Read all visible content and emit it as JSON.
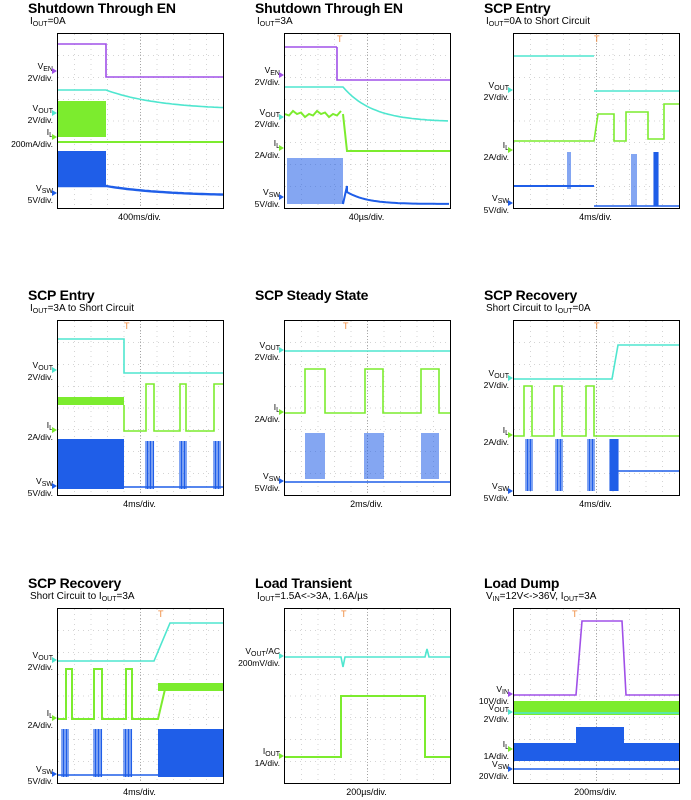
{
  "colors": {
    "vin_en": "#a050e8",
    "vout": "#4fe6cf",
    "il": "#7cec2e",
    "vsw": "#1f5ee8",
    "grid": "#a9a9a9",
    "trigger": "#f08a3c"
  },
  "chart_data": [
    {
      "type": "line",
      "title": "Shutdown Through EN",
      "subtitle": "I_OUT=0A",
      "timebase": "400ms/div.",
      "channels": [
        "V_EN 2V/div.",
        "V_OUT 2V/div.",
        "I_L 200mA/div.",
        "V_SW 5V/div."
      ]
    },
    {
      "type": "line",
      "title": "Shutdown Through EN",
      "subtitle": "I_OUT=3A",
      "timebase": "40µs/div.",
      "channels": [
        "V_EN 2V/div.",
        "V_OUT 2V/div.",
        "I_L 2A/div.",
        "V_SW 5V/div."
      ]
    },
    {
      "type": "line",
      "title": "SCP Entry",
      "subtitle": "I_OUT=0A to Short Circuit",
      "timebase": "4ms/div.",
      "channels": [
        "V_OUT 2V/div.",
        "I_L 2A/div.",
        "V_SW 5V/div."
      ]
    },
    {
      "type": "line",
      "title": "SCP Entry",
      "subtitle": "I_OUT=3A to Short Circuit",
      "timebase": "4ms/div.",
      "channels": [
        "V_OUT 2V/div.",
        "I_L 2A/div.",
        "V_SW 5V/div."
      ]
    },
    {
      "type": "line",
      "title": "SCP Steady State",
      "subtitle": "",
      "timebase": "2ms/div.",
      "channels": [
        "V_OUT 2V/div.",
        "I_L 2A/div.",
        "V_SW 5V/div."
      ]
    },
    {
      "type": "line",
      "title": "SCP Recovery",
      "subtitle": "Short Circuit to I_OUT=0A",
      "timebase": "4ms/div.",
      "channels": [
        "V_OUT 2V/div.",
        "I_L 2A/div.",
        "V_SW 5V/div."
      ]
    },
    {
      "type": "line",
      "title": "SCP Recovery",
      "subtitle": "Short Circuit to I_OUT=3A",
      "timebase": "4ms/div.",
      "channels": [
        "V_OUT 2V/div.",
        "I_L 2A/div.",
        "V_SW 5V/div."
      ]
    },
    {
      "type": "line",
      "title": "Load Transient",
      "subtitle": "I_OUT=1.5A<->3A, 1.6A/µs",
      "timebase": "200µs/div.",
      "channels": [
        "V_OUT/AC 200mV/div.",
        "I_OUT 1A/div."
      ]
    },
    {
      "type": "line",
      "title": "Load Dump",
      "subtitle": "V_IN=12V<->36V, I_OUT=3A",
      "timebase": "200ms/div.",
      "channels": [
        "V_IN 10V/div.",
        "V_OUT 2V/div.",
        "I_L 1A/div.",
        "V_SW 20V/div."
      ]
    }
  ]
}
